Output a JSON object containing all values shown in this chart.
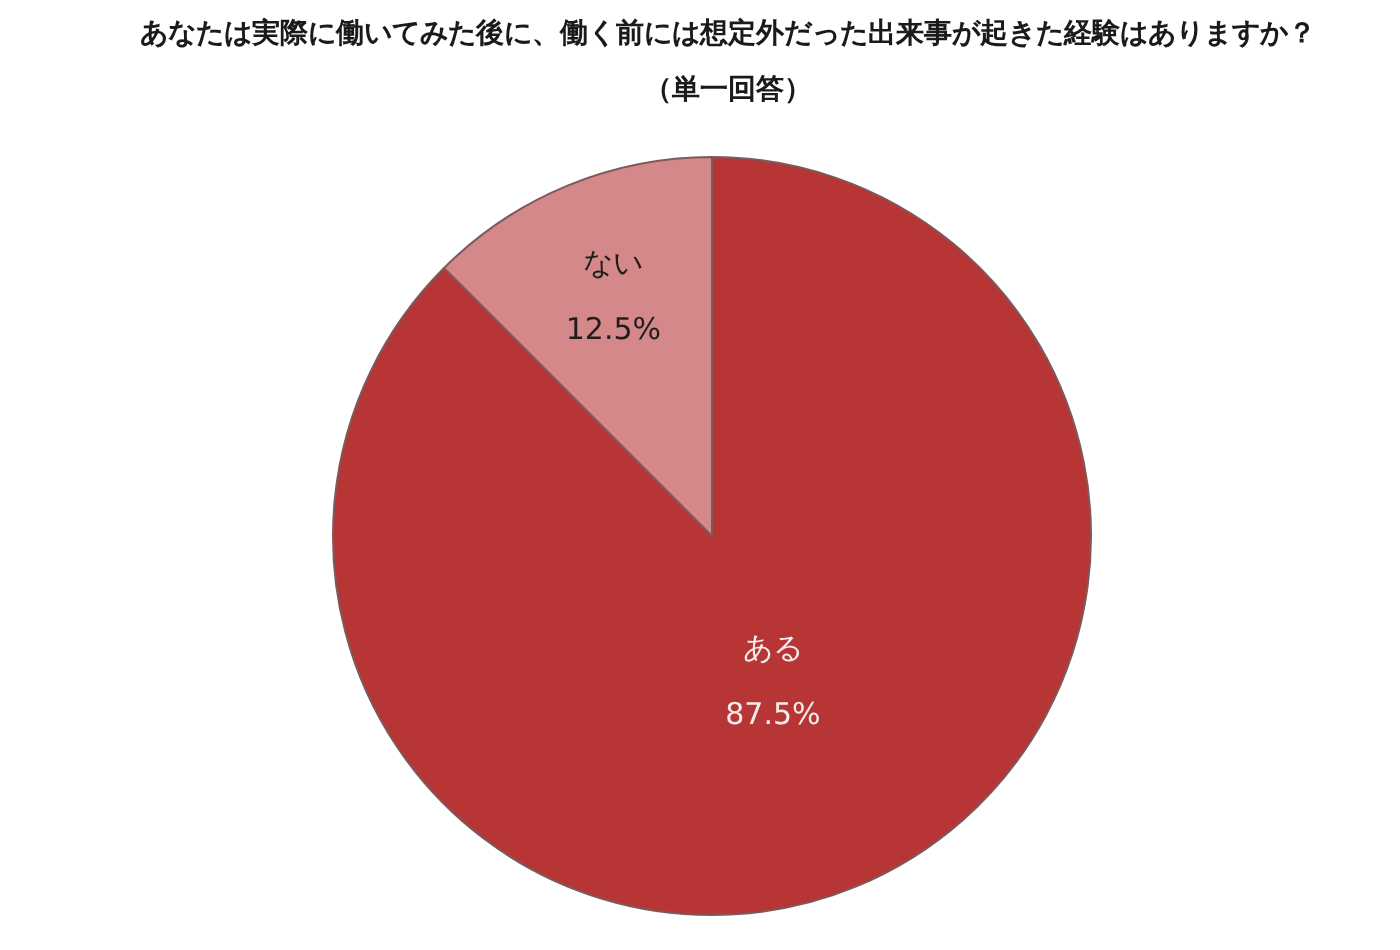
{
  "chart_data": {
    "type": "pie",
    "title": "あなたは実際に働いてみた後に、働く前には想定外だった出来事が起きた経験はありますか？",
    "subtitle": "（単一回答）",
    "categories": [
      "ある",
      "ない"
    ],
    "values": [
      87.5,
      12.5
    ],
    "colors": [
      "#b83535",
      "#d4888a"
    ],
    "value_labels": [
      "87.5%",
      "12.5%"
    ]
  }
}
